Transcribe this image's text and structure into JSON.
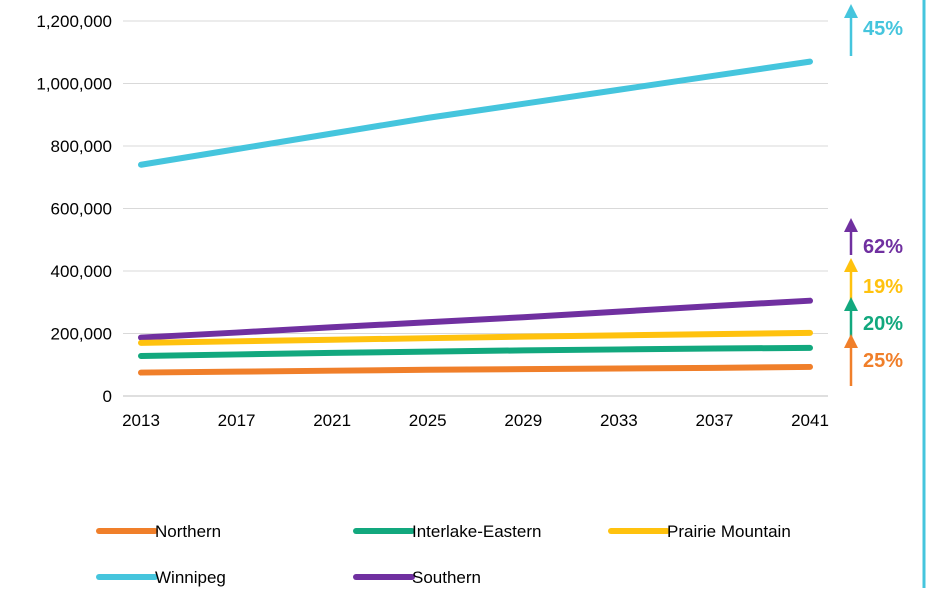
{
  "chart_data": {
    "type": "line",
    "x": [
      2013,
      2017,
      2021,
      2025,
      2029,
      2033,
      2037,
      2041
    ],
    "x_ticks": [
      "2013",
      "2017",
      "2021",
      "2025",
      "2029",
      "2033",
      "2037",
      "2041"
    ],
    "ylim": [
      0,
      1200000
    ],
    "y_ticks": [
      0,
      200000,
      400000,
      600000,
      800000,
      1000000,
      1200000
    ],
    "y_tick_labels": [
      "0",
      "200,000",
      "400,000",
      "600,000",
      "800,000",
      "1,000,000",
      "1,200,000"
    ],
    "grid": true,
    "legend_position": "bottom",
    "series": [
      {
        "name": "Northern",
        "color": "#F07F2A",
        "values": [
          75000,
          78000,
          81000,
          84000,
          86000,
          88000,
          90000,
          93000
        ],
        "change_label": "25%"
      },
      {
        "name": "Interlake-Eastern",
        "color": "#12A87E",
        "values": [
          128000,
          133000,
          138000,
          142000,
          146000,
          149000,
          152000,
          154000
        ],
        "change_label": "20%"
      },
      {
        "name": "Prairie Mountain",
        "color": "#FFC20E",
        "values": [
          170000,
          175000,
          180000,
          185000,
          190000,
          194000,
          198000,
          202000
        ],
        "change_label": "19%"
      },
      {
        "name": "Winnipeg",
        "color": "#45C5DD",
        "values": [
          740000,
          790000,
          840000,
          890000,
          935000,
          980000,
          1025000,
          1070000
        ],
        "change_label": "45%"
      },
      {
        "name": "Southern",
        "color": "#7030A0",
        "values": [
          187000,
          203000,
          220000,
          236000,
          252000,
          270000,
          288000,
          305000
        ],
        "change_label": "62%"
      }
    ]
  }
}
